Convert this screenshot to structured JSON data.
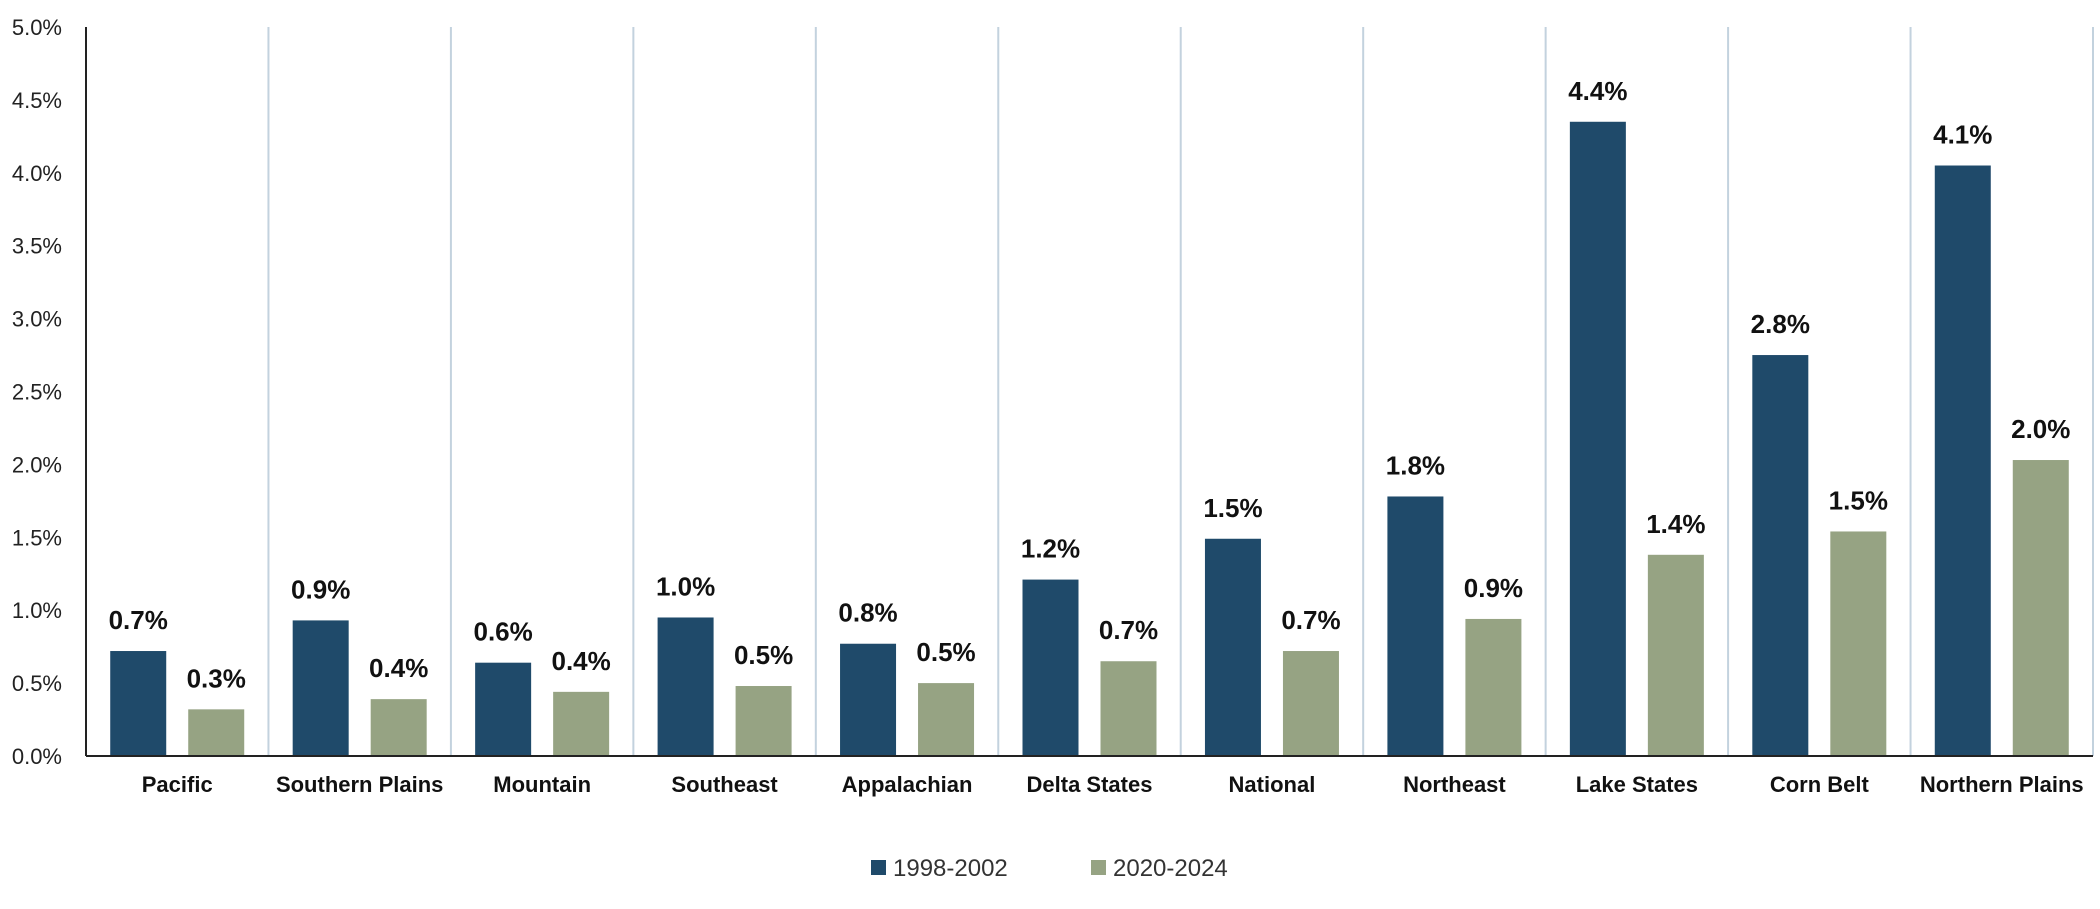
{
  "chart_data": {
    "type": "bar",
    "title": "",
    "xlabel": "",
    "ylabel": "",
    "ylim": [
      0,
      5.0
    ],
    "y_ticks": [
      "0.0%",
      "0.5%",
      "1.0%",
      "1.5%",
      "2.0%",
      "2.5%",
      "3.0%",
      "3.5%",
      "4.0%",
      "4.5%",
      "5.0%"
    ],
    "categories": [
      "Pacific",
      "Southern Plains",
      "Mountain",
      "Southeast",
      "Appalachian",
      "Delta States",
      "National",
      "Northeast",
      "Lake States",
      "Corn Belt",
      "Northern Plains"
    ],
    "series": [
      {
        "name": "1998-2002",
        "color": "#1f4a6a",
        "values": [
          0.72,
          0.93,
          0.64,
          0.95,
          0.77,
          1.21,
          1.49,
          1.78,
          4.35,
          2.75,
          4.05
        ],
        "labels": [
          "0.7%",
          "0.9%",
          "0.6%",
          "1.0%",
          "0.8%",
          "1.2%",
          "1.5%",
          "1.8%",
          "4.4%",
          "2.8%",
          "4.1%"
        ]
      },
      {
        "name": "2020-2024",
        "color": "#96a383",
        "values": [
          0.32,
          0.39,
          0.44,
          0.48,
          0.5,
          0.65,
          0.72,
          0.94,
          1.38,
          1.54,
          2.03
        ],
        "labels": [
          "0.3%",
          "0.4%",
          "0.4%",
          "0.5%",
          "0.5%",
          "0.7%",
          "0.7%",
          "0.9%",
          "1.4%",
          "1.5%",
          "2.0%"
        ]
      }
    ],
    "legend_position": "bottom-center",
    "grid": false,
    "category_separators": true
  }
}
